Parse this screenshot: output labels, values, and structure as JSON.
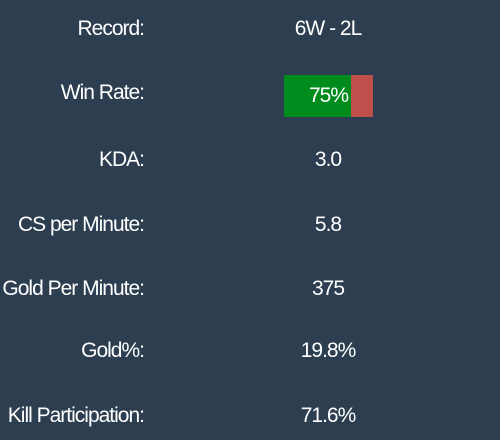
{
  "stats": {
    "record": {
      "label": "Record:",
      "value": "6W - 2L"
    },
    "win_rate": {
      "label": "Win Rate:",
      "value": "75%",
      "fraction": 0.75,
      "win_color": "#008c1d",
      "loss_color": "#c0504d"
    },
    "kda": {
      "label": "KDA:",
      "value": "3.0"
    },
    "cs_per_minute": {
      "label": "CS per Minute:",
      "value": "5.8"
    },
    "gold_per_minute": {
      "label": "Gold Per Minute:",
      "value": "375"
    },
    "gold_pct": {
      "label": "Gold%:",
      "value": "19.8%"
    },
    "kill_participation": {
      "label": "Kill Participation:",
      "value": "71.6%"
    }
  },
  "colors": {
    "background": "#2c3e50",
    "text": "#ffffff"
  }
}
